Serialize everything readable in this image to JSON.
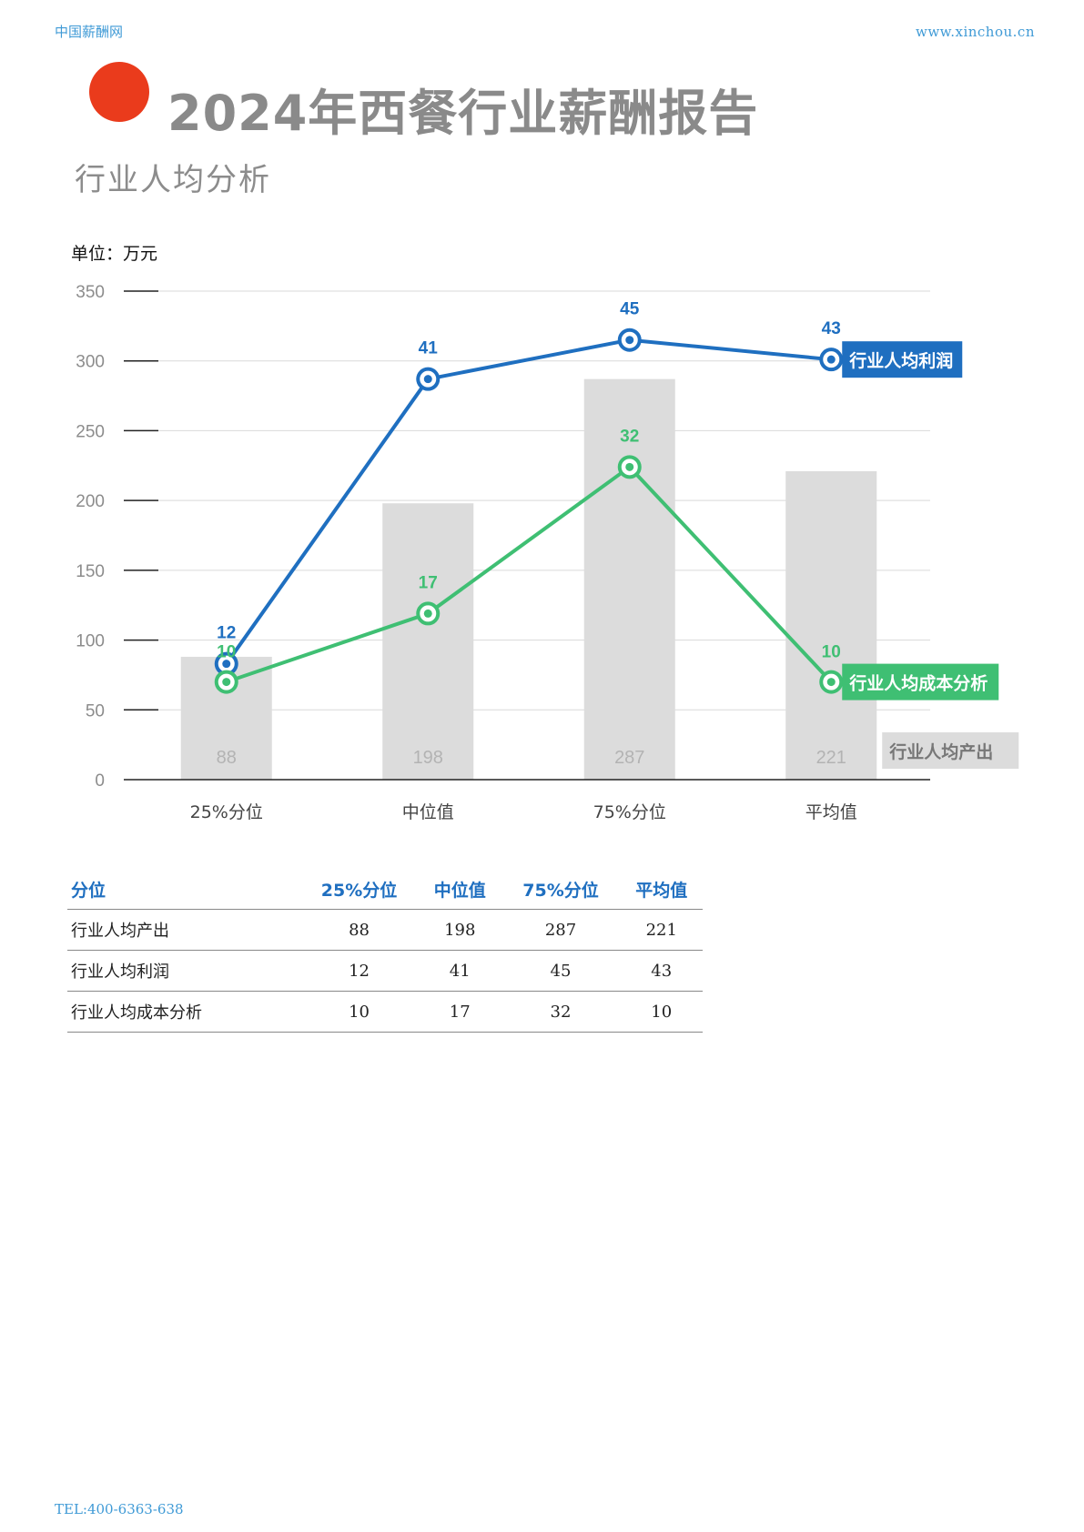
{
  "header": {
    "site_name": "中国薪酬网",
    "site_url": "www.xinchou.cn"
  },
  "title": "2024年西餐行业薪酬报告",
  "section_title": "行业人均分析",
  "unit_label": "单位：万元",
  "colors": {
    "profit": "#1f6fc0",
    "cost": "#3fbf73",
    "output": "#dcdcdc",
    "title_dot": "#ea3b1c"
  },
  "chart_data": {
    "type": "bar",
    "categories": [
      "25%分位",
      "中位值",
      "75%分位",
      "平均值"
    ],
    "ylim": [
      0,
      350
    ],
    "yticks": [
      0,
      50,
      100,
      150,
      200,
      250,
      300,
      350
    ],
    "grid": true,
    "series": [
      {
        "name": "行业人均产出",
        "type": "bar",
        "values": [
          88,
          198,
          287,
          221
        ]
      },
      {
        "name": "行业人均利润",
        "type": "line",
        "labels": [
          12,
          41,
          45,
          43
        ],
        "values": [
          83,
          287,
          315,
          301
        ]
      },
      {
        "name": "行业人均成本分析",
        "type": "line",
        "labels": [
          10,
          17,
          32,
          10
        ],
        "values": [
          70,
          119,
          224,
          70
        ]
      }
    ]
  },
  "table": {
    "headers": [
      "分位",
      "25%分位",
      "中位值",
      "75%分位",
      "平均值"
    ],
    "rows": [
      {
        "label": "行业人均产出",
        "values": [
          "88",
          "198",
          "287",
          "221"
        ]
      },
      {
        "label": "行业人均利润",
        "values": [
          "12",
          "41",
          "45",
          "43"
        ]
      },
      {
        "label": "行业人均成本分析",
        "values": [
          "10",
          "17",
          "32",
          "10"
        ]
      }
    ]
  },
  "footer": {
    "tel": "TEL:400-6363-638"
  }
}
